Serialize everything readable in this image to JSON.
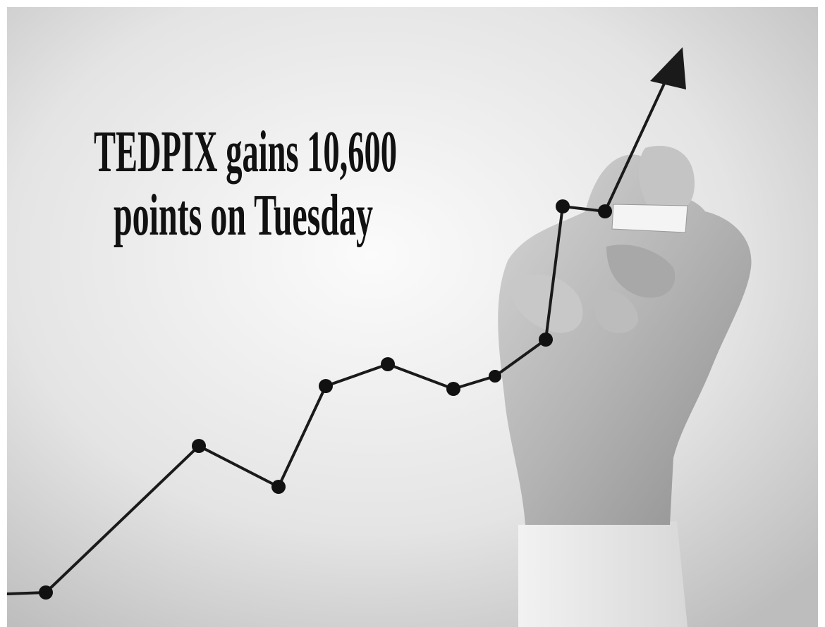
{
  "headline": {
    "lines": [
      "TEDPIX gains 10,600",
      "points on Tuesday"
    ]
  }
}
